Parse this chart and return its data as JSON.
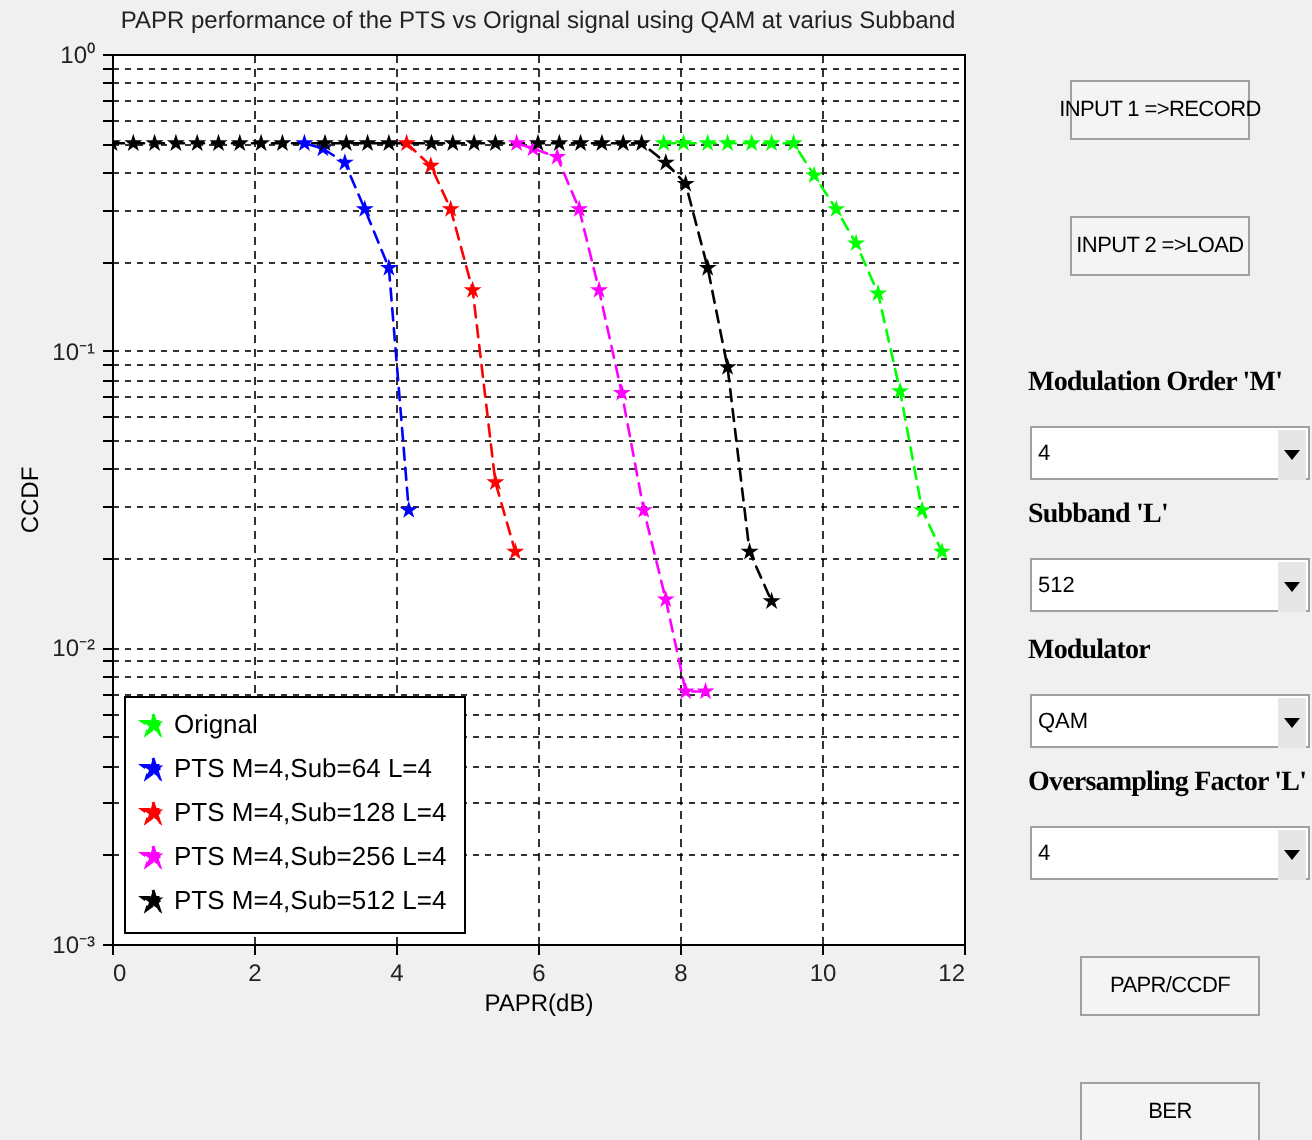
{
  "chart_data": [
    {
      "type": "line",
      "title": "PAPR performance of the PTS vs Orignal signal using QAM at varius Subband",
      "xlabel": "PAPR(dB)",
      "ylabel": "CCDF",
      "log": "y",
      "xlim": [
        0,
        12
      ],
      "xticks": [
        0,
        2,
        4,
        6,
        8,
        10,
        12
      ],
      "ylim": [
        0.001,
        1
      ],
      "yticks": [
        {
          "value": 0.001,
          "label": "10⁻³"
        },
        {
          "value": 0.01,
          "label": "10⁻²"
        },
        {
          "value": 0.1,
          "label": "10⁻¹"
        },
        {
          "value": 1,
          "label": "10⁰"
        }
      ],
      "grid": true,
      "legend": "bottom left",
      "marker": "star",
      "line_style": "dashed",
      "series": [
        {
          "name": "Orignal",
          "color": "#00ff00",
          "x": [
            7.77,
            8.05,
            8.39,
            8.67,
            9.01,
            9.29,
            9.6,
            9.89,
            10.2,
            10.48,
            10.79,
            11.1,
            11.41,
            11.69
          ],
          "values": [
            0.5,
            0.5,
            0.5,
            0.5,
            0.5,
            0.5,
            0.5,
            0.39,
            0.3,
            0.23,
            0.156,
            0.073,
            0.029,
            0.021
          ]
        },
        {
          "name": "PTS M=4,Sub=64 L=4",
          "color": "#0000ff",
          "x": [
            2.71,
            2.97,
            3.28,
            3.56,
            3.9,
            4.18
          ],
          "values": [
            0.5,
            0.48,
            0.43,
            0.3,
            0.19,
            0.029
          ]
        },
        {
          "name": "PTS M=4,Sub=128 L=4",
          "color": "#ff0000",
          "x": [
            4.15,
            4.49,
            4.77,
            5.08,
            5.4,
            5.68
          ],
          "values": [
            0.5,
            0.42,
            0.3,
            0.16,
            0.036,
            0.021
          ]
        },
        {
          "name": "PTS M=4,Sub=256 L=4",
          "color": "#ff00ff",
          "x": [
            5.7,
            5.93,
            6.27,
            6.58,
            6.86,
            7.18,
            7.49,
            7.8,
            8.08,
            8.36
          ],
          "values": [
            0.5,
            0.48,
            0.45,
            0.3,
            0.16,
            0.072,
            0.029,
            0.0145,
            0.0071,
            0.0071
          ]
        },
        {
          "name": "PTS M=4,Sub=512 L=4",
          "color": "#000000",
          "x": [
            0,
            0.3,
            0.6,
            0.9,
            1.2,
            1.5,
            1.8,
            2.1,
            2.4,
            2.7,
            3,
            3.3,
            3.6,
            3.9,
            4.2,
            4.5,
            4.8,
            5.1,
            5.4,
            5.7,
            6,
            6.3,
            6.6,
            6.9,
            7.2,
            7.46,
            7.8,
            8.08,
            8.39,
            8.67,
            8.98,
            9.29
          ],
          "values": [
            0.5,
            0.5,
            0.5,
            0.5,
            0.5,
            0.5,
            0.5,
            0.5,
            0.5,
            null,
            0.5,
            0.5,
            0.5,
            0.5,
            null,
            0.5,
            0.5,
            0.5,
            0.5,
            null,
            0.5,
            0.5,
            0.5,
            0.5,
            0.5,
            0.5,
            0.43,
            0.365,
            0.19,
            0.088,
            0.021,
            0.0143
          ]
        }
      ]
    },
    {
      "type": "other",
      "annotations": [
        "INPUT 1 =>RECORD",
        "INPUT 2  =>LOAD",
        "Modulation Order 'M'",
        "4",
        "Subband 'L'",
        "512",
        "Modulator",
        "QAM",
        "Oversampling Factor 'L'",
        "4",
        "PAPR/CCDF",
        "BER"
      ]
    }
  ]
}
